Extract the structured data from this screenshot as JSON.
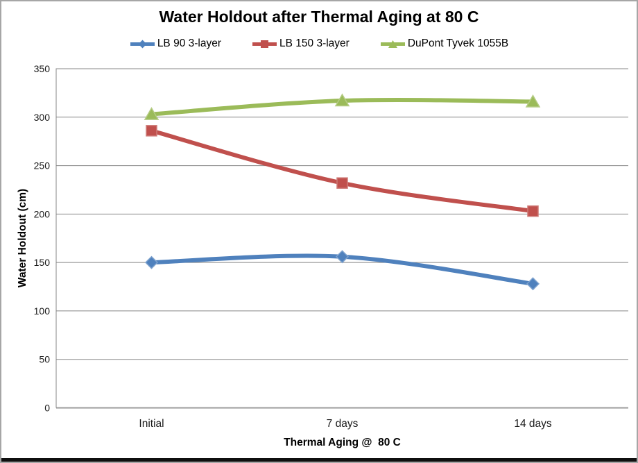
{
  "window": {
    "frame_border_color": "#a6a6a6",
    "bottom_bar_color": "#0f0f0f"
  },
  "chart_data": {
    "type": "line",
    "title": "Water Holdout after Thermal Aging at 80 C",
    "categories": [
      "Initial",
      "7 days",
      "14 days"
    ],
    "series": [
      {
        "name": "LB 90 3-layer",
        "color": "#4F81BD",
        "marker_border": "#7FA3CE",
        "marker": "diamond",
        "values": [
          150,
          156,
          128
        ]
      },
      {
        "name": "LB 150 3-layer",
        "color": "#C0504D",
        "marker_border": "#CE7A77",
        "marker": "square",
        "values": [
          286,
          232,
          203
        ]
      },
      {
        "name": "DuPont Tyvek 1055B",
        "color": "#9BBB59",
        "marker_border": "#B5CC85",
        "marker": "triangle",
        "values": [
          303,
          317,
          316
        ]
      }
    ],
    "xlabel": "Thermal Aging @  80 C",
    "ylabel": "Water Holdout (cm)",
    "ylim": [
      0,
      350
    ],
    "yticks": [
      0,
      50,
      100,
      150,
      200,
      250,
      300,
      350
    ],
    "grid": "horizontal",
    "smooth_lines": true,
    "legend_position": "top",
    "gridline_color": "#878787",
    "axis_line_color": "#a6a6a6",
    "tick_label_color": "#1a1a1a",
    "tick_font_size": 14,
    "category_font_size": 15.5
  }
}
